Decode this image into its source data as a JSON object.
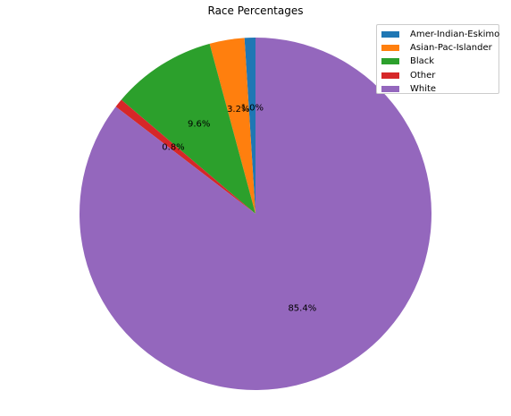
{
  "chart_data": {
    "type": "pie",
    "title": "Race Percentages",
    "categories": [
      "Amer-Indian-Eskimo",
      "Asian-Pac-Islander",
      "Black",
      "Other",
      "White"
    ],
    "values": [
      1.0,
      3.2,
      9.6,
      0.8,
      85.4
    ],
    "labels": [
      "1.0%",
      "3.2%",
      "9.6%",
      "0.8%",
      "85.4%"
    ],
    "colors": [
      "#1f77b4",
      "#ff7f0e",
      "#2ca02c",
      "#d62728",
      "#9467bd"
    ],
    "start_angle_deg": 90,
    "direction": "counterclockwise",
    "legend_position": "top-right"
  }
}
